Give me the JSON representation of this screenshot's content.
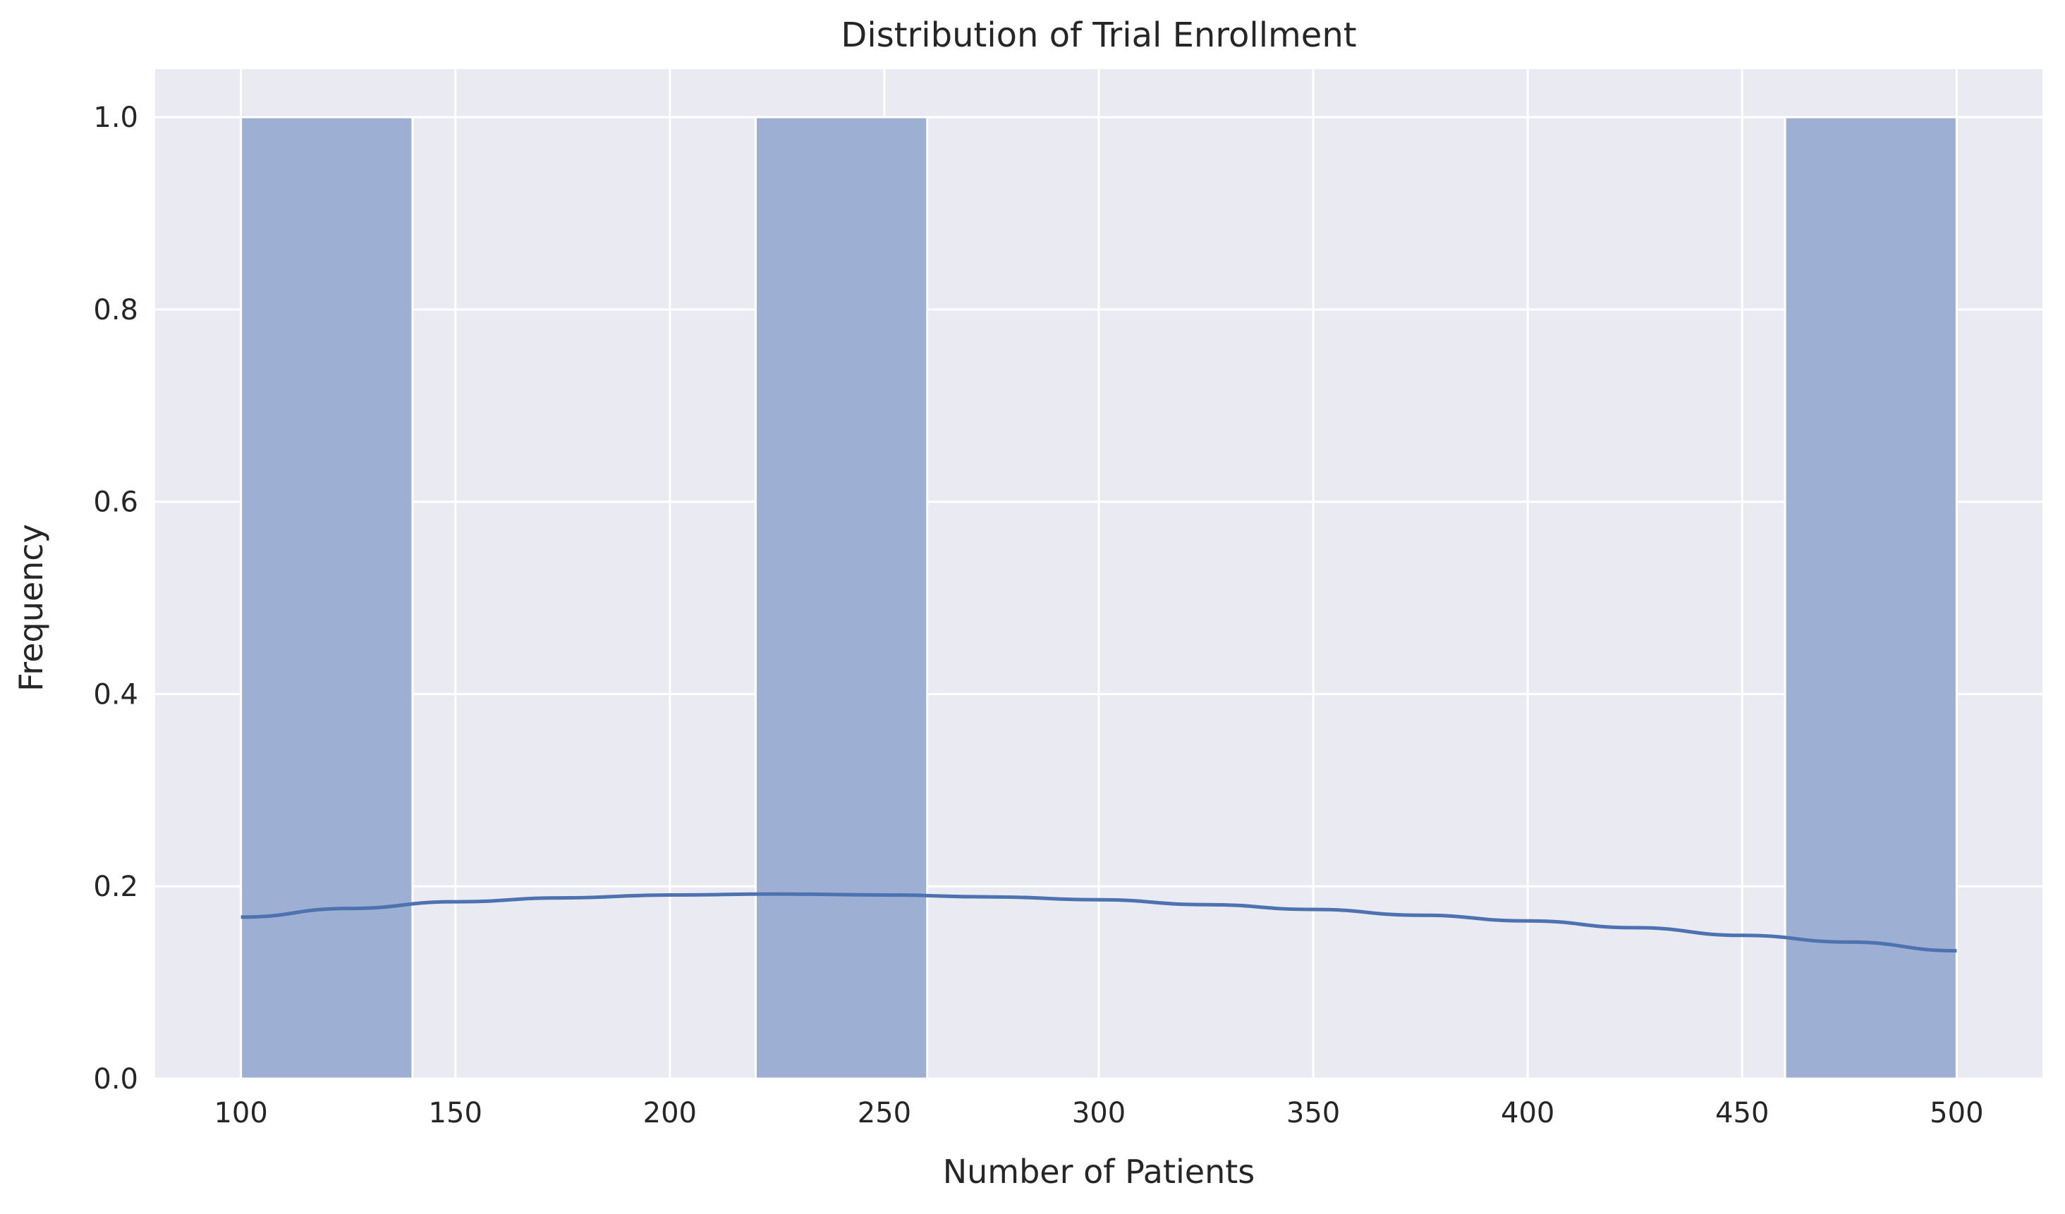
{
  "chart_data": {
    "type": "bar",
    "title": "Distribution of Trial Enrollment",
    "xlabel": "Number of Patients",
    "ylabel": "Frequency",
    "xlim": [
      80,
      520
    ],
    "ylim": [
      0,
      1.05
    ],
    "xticks": [
      100,
      150,
      200,
      250,
      300,
      350,
      400,
      450,
      500
    ],
    "yticks": [
      0.0,
      0.2,
      0.4,
      0.6,
      0.8,
      1.0
    ],
    "xtick_labels": [
      "100",
      "150",
      "200",
      "250",
      "300",
      "350",
      "400",
      "450",
      "500"
    ],
    "ytick_labels": [
      "0.0",
      "0.2",
      "0.4",
      "0.6",
      "0.8",
      "1.0"
    ],
    "grid": true,
    "bins": [
      {
        "x0": 100,
        "x1": 140,
        "count": 1
      },
      {
        "x0": 220,
        "x1": 260,
        "count": 1
      },
      {
        "x0": 460,
        "x1": 500,
        "count": 1
      }
    ],
    "kde": {
      "x": [
        100,
        125,
        150,
        175,
        200,
        225,
        250,
        275,
        300,
        325,
        350,
        375,
        400,
        425,
        450,
        475,
        500
      ],
      "y": [
        0.168,
        0.177,
        0.184,
        0.188,
        0.191,
        0.192,
        0.191,
        0.189,
        0.186,
        0.181,
        0.176,
        0.17,
        0.164,
        0.157,
        0.149,
        0.142,
        0.133
      ]
    },
    "colors": {
      "bar": "#99acd0",
      "kde": "#4c72b0",
      "plot_background": "#eaeaf2",
      "grid": "#ffffff"
    }
  }
}
